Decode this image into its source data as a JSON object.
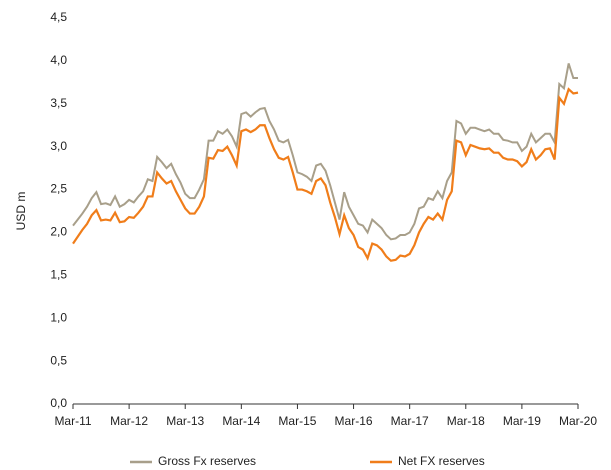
{
  "chart_data": {
    "type": "line",
    "y_label": "USD m",
    "categories": [
      "Mar-11",
      null,
      null,
      null,
      null,
      null,
      null,
      null,
      null,
      null,
      null,
      null,
      "Mar-12",
      null,
      null,
      null,
      null,
      null,
      null,
      null,
      null,
      null,
      null,
      null,
      "Mar-13",
      null,
      null,
      null,
      null,
      null,
      null,
      null,
      null,
      null,
      null,
      null,
      "Mar-14",
      null,
      null,
      null,
      null,
      null,
      null,
      null,
      null,
      null,
      null,
      null,
      "Mar-15",
      null,
      null,
      null,
      null,
      null,
      null,
      null,
      null,
      null,
      null,
      null,
      "Mar-16",
      null,
      null,
      null,
      null,
      null,
      null,
      null,
      null,
      null,
      null,
      null,
      "Mar-17",
      null,
      null,
      null,
      null,
      null,
      null,
      null,
      null,
      null,
      null,
      null,
      "Mar-18",
      null,
      null,
      null,
      null,
      null,
      null,
      null,
      null,
      null,
      null,
      null,
      "Mar-19",
      null,
      null,
      null,
      null,
      null,
      null,
      null,
      null,
      null,
      null,
      null,
      "Mar-20"
    ],
    "series": [
      {
        "name": "Gross Fx reserves",
        "color": "#a89f8a",
        "values": [
          2.08,
          2.15,
          2.22,
          2.3,
          2.4,
          2.47,
          2.33,
          2.34,
          2.32,
          2.42,
          2.3,
          2.33,
          2.38,
          2.35,
          2.42,
          2.48,
          2.62,
          2.6,
          2.88,
          2.82,
          2.75,
          2.8,
          2.68,
          2.58,
          2.45,
          2.4,
          2.4,
          2.5,
          2.62,
          3.07,
          3.07,
          3.18,
          3.15,
          3.2,
          3.12,
          3.0,
          3.38,
          3.4,
          3.35,
          3.4,
          3.44,
          3.45,
          3.3,
          3.2,
          3.07,
          3.05,
          3.08,
          2.9,
          2.7,
          2.68,
          2.65,
          2.6,
          2.78,
          2.8,
          2.72,
          2.55,
          2.35,
          2.15,
          2.47,
          2.3,
          2.2,
          2.1,
          2.08,
          2.0,
          2.15,
          2.1,
          2.05,
          1.97,
          1.92,
          1.93,
          1.97,
          1.97,
          2.0,
          2.1,
          2.28,
          2.3,
          2.4,
          2.38,
          2.48,
          2.4,
          2.6,
          2.7,
          3.3,
          3.27,
          3.15,
          3.22,
          3.22,
          3.2,
          3.18,
          3.2,
          3.15,
          3.15,
          3.08,
          3.07,
          3.05,
          3.05,
          2.95,
          3.0,
          3.15,
          3.05,
          3.1,
          3.15,
          3.15,
          3.05,
          3.73,
          3.68,
          3.97,
          3.8,
          3.8
        ]
      },
      {
        "name": "Net FX reserves",
        "color": "#f07d1a",
        "values": [
          1.87,
          1.95,
          2.03,
          2.1,
          2.2,
          2.26,
          2.14,
          2.15,
          2.14,
          2.23,
          2.12,
          2.13,
          2.18,
          2.17,
          2.23,
          2.3,
          2.42,
          2.42,
          2.7,
          2.63,
          2.57,
          2.6,
          2.48,
          2.38,
          2.28,
          2.22,
          2.22,
          2.3,
          2.42,
          2.87,
          2.86,
          2.96,
          2.95,
          3.0,
          2.9,
          2.78,
          3.18,
          3.2,
          3.17,
          3.2,
          3.25,
          3.25,
          3.1,
          2.97,
          2.87,
          2.85,
          2.88,
          2.7,
          2.5,
          2.5,
          2.48,
          2.45,
          2.6,
          2.63,
          2.55,
          2.35,
          2.18,
          1.98,
          2.2,
          2.05,
          1.97,
          1.83,
          1.8,
          1.7,
          1.87,
          1.85,
          1.8,
          1.72,
          1.67,
          1.68,
          1.73,
          1.72,
          1.75,
          1.85,
          2.0,
          2.1,
          2.18,
          2.15,
          2.22,
          2.15,
          2.38,
          2.48,
          3.07,
          3.05,
          2.9,
          3.02,
          3.0,
          2.98,
          2.97,
          2.98,
          2.93,
          2.93,
          2.87,
          2.85,
          2.85,
          2.83,
          2.77,
          2.82,
          2.97,
          2.85,
          2.9,
          2.97,
          2.98,
          2.85,
          3.57,
          3.5,
          3.67,
          3.62,
          3.63
        ]
      }
    ],
    "ylim": [
      0,
      4.5
    ],
    "yticks": [
      {
        "value": 0,
        "label": "0,0"
      },
      {
        "value": 0.5,
        "label": "0,5"
      },
      {
        "value": 1,
        "label": "1,0"
      },
      {
        "value": 1.5,
        "label": "1,5"
      },
      {
        "value": 2,
        "label": "2,0"
      },
      {
        "value": 2.5,
        "label": "2,5"
      },
      {
        "value": 3,
        "label": "3,0"
      },
      {
        "value": 3.5,
        "label": "3,5"
      },
      {
        "value": 4,
        "label": "4,0"
      },
      {
        "value": 4.5,
        "label": "4,5"
      }
    ],
    "grid": false,
    "legend": "bottom"
  }
}
